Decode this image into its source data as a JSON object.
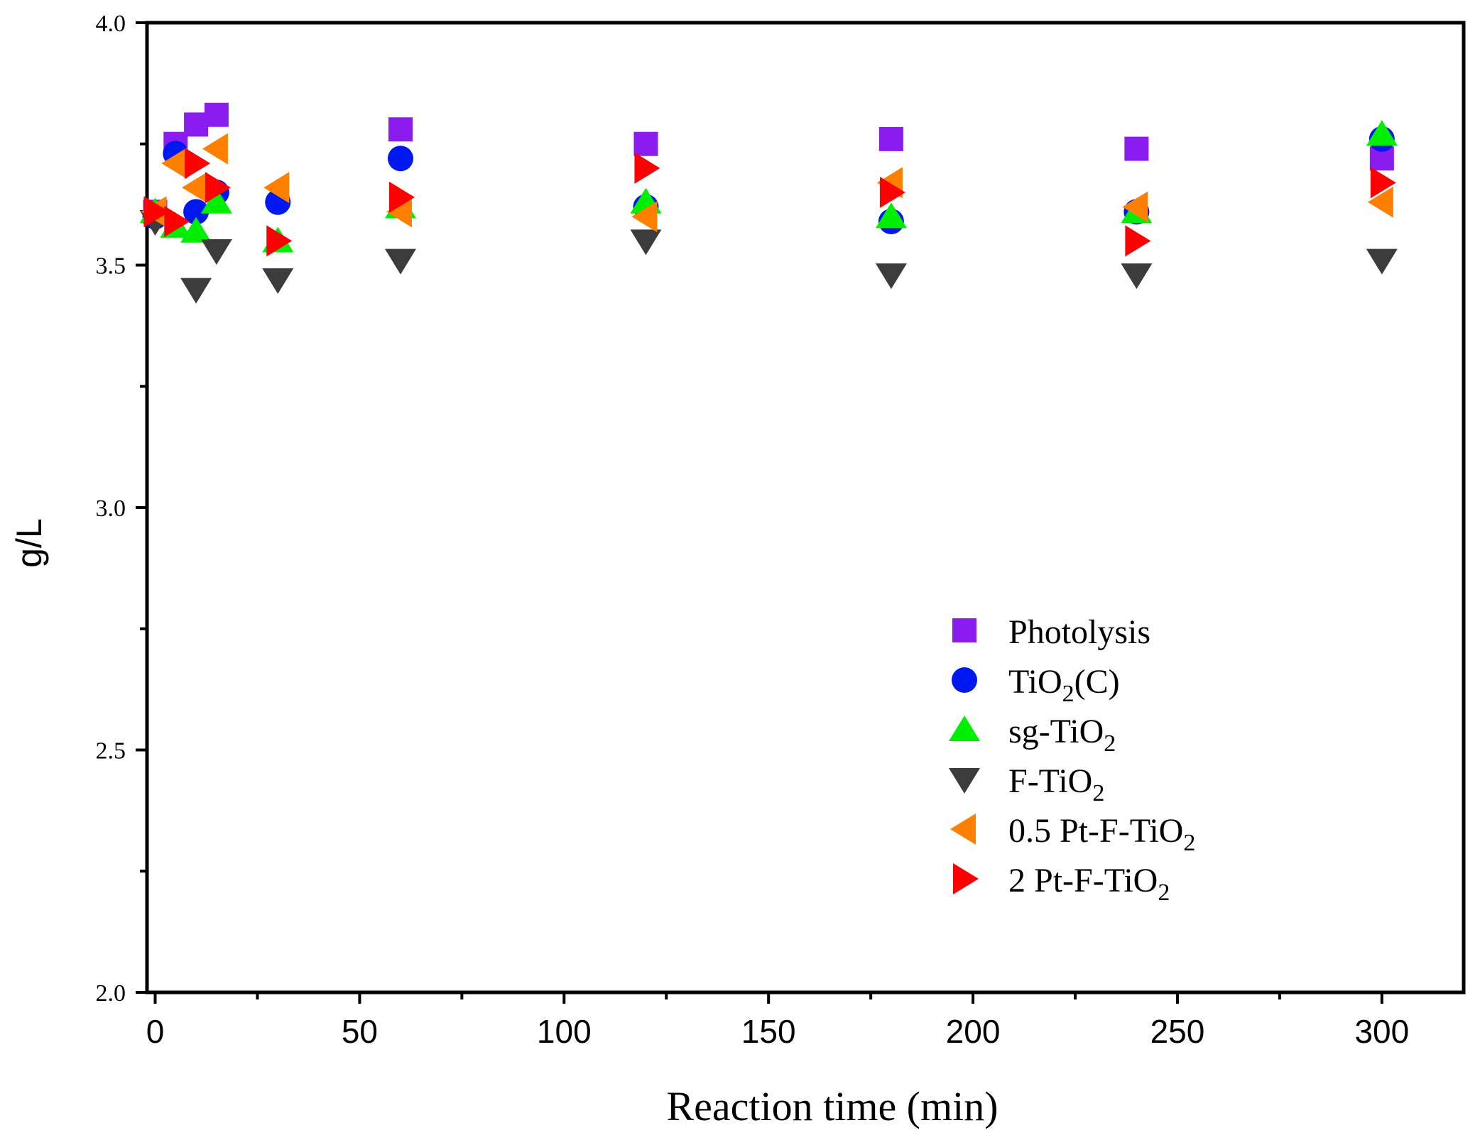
{
  "chart_data": {
    "type": "scatter",
    "title": "",
    "xlabel": "Reaction time (min)",
    "ylabel": "g/L",
    "xlim": [
      -2,
      320
    ],
    "ylim": [
      2.0,
      4.0
    ],
    "x_ticks": [
      0,
      50,
      100,
      150,
      200,
      250,
      300
    ],
    "x_tick_labels": [
      "0",
      "50",
      "100",
      "150",
      "200",
      "250",
      "300"
    ],
    "y_ticks": [
      2.0,
      2.5,
      3.0,
      3.5,
      4.0
    ],
    "y_tick_labels": [
      "2.0",
      "2.5",
      "3.0",
      "3.5",
      "4.0"
    ],
    "x_minor_ticks": [
      25,
      75,
      125,
      175,
      225,
      275
    ],
    "y_minor_ticks": [
      2.25,
      2.75,
      3.25,
      3.75
    ],
    "grid": false,
    "legend_position": "lower-right",
    "series": [
      {
        "name": "Photolysis",
        "legend_main": "Photolysis",
        "legend_sub": "",
        "legend_tail": "",
        "marker": "square",
        "color": "#8b1cf0",
        "points": [
          [
            0,
            3.61
          ],
          [
            5,
            3.75
          ],
          [
            10,
            3.79
          ],
          [
            15,
            3.81
          ],
          [
            60,
            3.78
          ],
          [
            120,
            3.75
          ],
          [
            180,
            3.76
          ],
          [
            240,
            3.74
          ],
          [
            300,
            3.72
          ]
        ]
      },
      {
        "name": "TiO2(C)",
        "legend_main": "TiO",
        "legend_sub": "2",
        "legend_tail": "(C)",
        "marker": "circle",
        "color": "#0018f0",
        "points": [
          [
            0,
            3.6
          ],
          [
            5,
            3.73
          ],
          [
            10,
            3.61
          ],
          [
            15,
            3.65
          ],
          [
            30,
            3.63
          ],
          [
            60,
            3.72
          ],
          [
            120,
            3.62
          ],
          [
            180,
            3.59
          ],
          [
            240,
            3.61
          ],
          [
            300,
            3.76
          ]
        ]
      },
      {
        "name": "sg-TiO2",
        "legend_main": "sg-TiO",
        "legend_sub": "2",
        "legend_tail": "",
        "marker": "triangle-up",
        "color": "#00ee00",
        "points": [
          [
            0,
            3.61
          ],
          [
            5,
            3.58
          ],
          [
            10,
            3.57
          ],
          [
            15,
            3.63
          ],
          [
            30,
            3.55
          ],
          [
            60,
            3.62
          ],
          [
            120,
            3.63
          ],
          [
            180,
            3.6
          ],
          [
            240,
            3.61
          ],
          [
            300,
            3.77
          ]
        ]
      },
      {
        "name": "F-TiO2",
        "legend_main": "F-TiO",
        "legend_sub": "2",
        "legend_tail": "",
        "marker": "triangle-down",
        "color": "#3c3c3c",
        "points": [
          [
            0,
            3.59
          ],
          [
            10,
            3.45
          ],
          [
            15,
            3.53
          ],
          [
            30,
            3.47
          ],
          [
            60,
            3.51
          ],
          [
            120,
            3.55
          ],
          [
            180,
            3.48
          ],
          [
            240,
            3.48
          ],
          [
            300,
            3.51
          ]
        ]
      },
      {
        "name": "0.5 Pt-F-TiO2",
        "legend_main": "0.5 Pt-F-TiO",
        "legend_sub": "2",
        "legend_tail": "",
        "marker": "triangle-left",
        "color": "#ff8000",
        "points": [
          [
            0,
            3.61
          ],
          [
            5,
            3.71
          ],
          [
            10,
            3.66
          ],
          [
            15,
            3.74
          ],
          [
            30,
            3.66
          ],
          [
            60,
            3.61
          ],
          [
            120,
            3.6
          ],
          [
            180,
            3.67
          ],
          [
            240,
            3.62
          ],
          [
            300,
            3.63
          ]
        ]
      },
      {
        "name": "2 Pt-F-TiO2",
        "legend_main": "2 Pt-F-TiO",
        "legend_sub": "2",
        "legend_tail": "",
        "marker": "triangle-right",
        "color": "#ff0000",
        "points": [
          [
            0,
            3.61
          ],
          [
            5,
            3.59
          ],
          [
            10,
            3.71
          ],
          [
            15,
            3.66
          ],
          [
            30,
            3.55
          ],
          [
            60,
            3.64
          ],
          [
            120,
            3.7
          ],
          [
            180,
            3.65
          ],
          [
            240,
            3.55
          ],
          [
            300,
            3.67
          ]
        ]
      }
    ]
  }
}
